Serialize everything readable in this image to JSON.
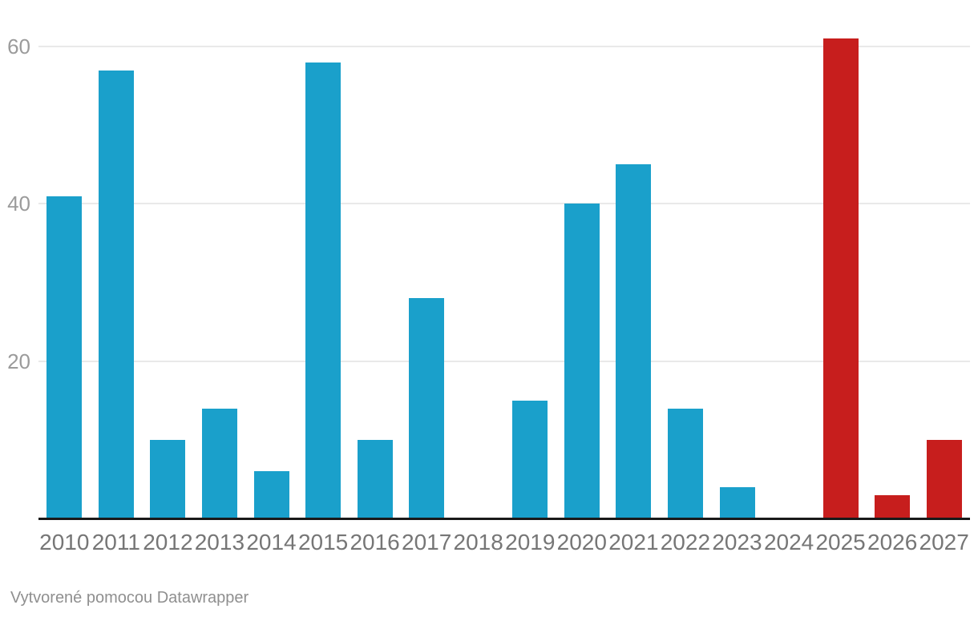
{
  "chart_data": {
    "type": "bar",
    "title": "",
    "xlabel": "",
    "ylabel": "",
    "categories": [
      "2010",
      "2011",
      "2012",
      "2013",
      "2014",
      "2015",
      "2016",
      "2017",
      "2018",
      "2019",
      "2020",
      "2021",
      "2022",
      "2023",
      "2024",
      "2025",
      "2026",
      "2027"
    ],
    "values": [
      41,
      57,
      10,
      14,
      6,
      58,
      10,
      28,
      0,
      15,
      40,
      45,
      14,
      4,
      0,
      61,
      3,
      10
    ],
    "highlighted_categories": [
      "2025",
      "2026",
      "2027"
    ],
    "bar_color": "#1AA0CB",
    "highlight_color": "#C71E1D",
    "yticks": [
      20,
      40,
      60
    ],
    "ylim": [
      0,
      62
    ],
    "grid": "horizontal",
    "legend": "none"
  },
  "colors": {
    "background": "#FFFFFF",
    "gridline": "#E9E9E9",
    "axis_line": "#191919",
    "y_tick_label": "#9B9B9B",
    "x_tick_label": "#767676",
    "footer_text": "#8F8F8F"
  },
  "footer": {
    "attribution_prefix": "Vytvorené pomocou ",
    "attribution_link": "Datawrapper"
  }
}
